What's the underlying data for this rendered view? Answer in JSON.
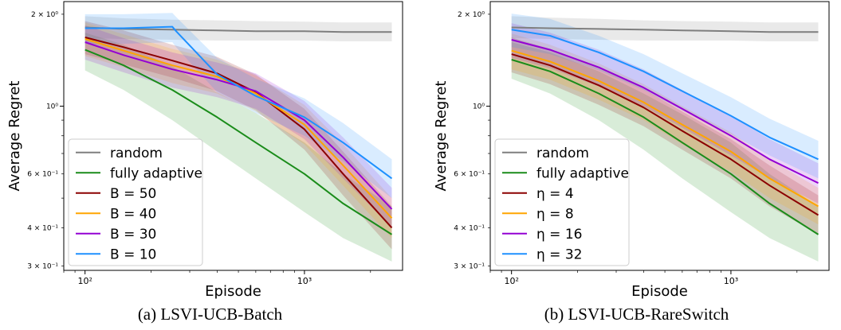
{
  "chart_data": [
    {
      "type": "line",
      "caption": "(a)  LSVI-UCB-Batch",
      "xlabel": "Episode",
      "ylabel": "Average Regret",
      "xscale": "log",
      "yscale": "log",
      "xlim": [
        80,
        2800
      ],
      "ylim": [
        0.29,
        2.2
      ],
      "x_ticks": [
        {
          "value": 100,
          "label": "10²"
        },
        {
          "value": 1000,
          "label": "10³"
        }
      ],
      "y_ticks": [
        {
          "value": 2,
          "label": "2 × 10⁰"
        },
        {
          "value": 1,
          "label": "10⁰"
        },
        {
          "value": 0.6,
          "label": "6 × 10⁻¹"
        },
        {
          "value": 0.4,
          "label": "4 × 10⁻¹"
        },
        {
          "value": 0.3,
          "label": "3 × 10⁻¹"
        }
      ],
      "legend_position": "lower-left",
      "grid": false,
      "series": [
        {
          "name": "random",
          "color": "#7f7f7f",
          "x": [
            100,
            150,
            250,
            400,
            600,
            1000,
            1500,
            2500
          ],
          "y": [
            1.81,
            1.79,
            1.78,
            1.77,
            1.76,
            1.76,
            1.75,
            1.75
          ],
          "lower": [
            1.67,
            1.66,
            1.65,
            1.64,
            1.64,
            1.64,
            1.63,
            1.63
          ],
          "upper": [
            1.97,
            1.94,
            1.92,
            1.91,
            1.9,
            1.89,
            1.88,
            1.88
          ]
        },
        {
          "name": "fully adaptive",
          "color": "#1a8c1a",
          "x": [
            100,
            150,
            250,
            400,
            600,
            1000,
            1500,
            2500
          ],
          "y": [
            1.53,
            1.36,
            1.13,
            0.92,
            0.76,
            0.6,
            0.48,
            0.38
          ],
          "lower": [
            1.31,
            1.13,
            0.9,
            0.71,
            0.58,
            0.45,
            0.37,
            0.31
          ],
          "upper": [
            1.74,
            1.59,
            1.35,
            1.11,
            0.95,
            0.76,
            0.6,
            0.47
          ]
        },
        {
          "name": "B = 50",
          "color": "#8b0000",
          "x": [
            100,
            150,
            250,
            400,
            600,
            1000,
            1500,
            2500
          ],
          "y": [
            1.68,
            1.56,
            1.41,
            1.28,
            1.11,
            0.84,
            0.6,
            0.4
          ],
          "lower": [
            1.48,
            1.37,
            1.24,
            1.12,
            0.97,
            0.72,
            0.51,
            0.34
          ],
          "upper": [
            1.9,
            1.77,
            1.59,
            1.45,
            1.27,
            0.98,
            0.71,
            0.47
          ]
        },
        {
          "name": "B = 40",
          "color": "#ffa500",
          "x": [
            100,
            150,
            250,
            400,
            600,
            1000,
            1500,
            2500
          ],
          "y": [
            1.66,
            1.52,
            1.36,
            1.25,
            1.1,
            0.87,
            0.64,
            0.43
          ],
          "lower": [
            1.46,
            1.34,
            1.19,
            1.1,
            0.96,
            0.75,
            0.55,
            0.37
          ],
          "upper": [
            1.88,
            1.72,
            1.54,
            1.42,
            1.26,
            1.01,
            0.75,
            0.5
          ]
        },
        {
          "name": "B = 30",
          "color": "#9400d3",
          "x": [
            100,
            150,
            250,
            400,
            600,
            1000,
            1500,
            2500
          ],
          "y": [
            1.62,
            1.47,
            1.32,
            1.22,
            1.12,
            0.9,
            0.68,
            0.46
          ],
          "lower": [
            1.42,
            1.29,
            1.15,
            1.07,
            0.98,
            0.78,
            0.58,
            0.4
          ],
          "upper": [
            1.84,
            1.67,
            1.5,
            1.39,
            1.28,
            1.04,
            0.79,
            0.54
          ]
        },
        {
          "name": "B = 10",
          "color": "#1e90ff",
          "x": [
            100,
            150,
            250,
            260,
            400,
            600,
            1000,
            1500,
            2500
          ],
          "y": [
            1.8,
            1.8,
            1.82,
            1.76,
            1.27,
            1.08,
            0.92,
            0.76,
            0.58
          ],
          "lower": [
            1.6,
            1.6,
            1.62,
            1.56,
            1.11,
            0.95,
            0.8,
            0.66,
            0.5
          ],
          "upper": [
            2.0,
            2.0,
            2.02,
            1.96,
            1.44,
            1.23,
            1.06,
            0.88,
            0.67
          ]
        }
      ]
    },
    {
      "type": "line",
      "caption": "(b)  LSVI-UCB-RareSwitch",
      "xlabel": "Episode",
      "ylabel": "Average Regret",
      "xscale": "log",
      "yscale": "log",
      "xlim": [
        80,
        2800
      ],
      "ylim": [
        0.29,
        2.2
      ],
      "x_ticks": [
        {
          "value": 100,
          "label": "10²"
        },
        {
          "value": 1000,
          "label": "10³"
        }
      ],
      "y_ticks": [
        {
          "value": 2,
          "label": "2 × 10⁰"
        },
        {
          "value": 1,
          "label": "10⁰"
        },
        {
          "value": 0.6,
          "label": "6 × 10⁻¹"
        },
        {
          "value": 0.4,
          "label": "4 × 10⁻¹"
        },
        {
          "value": 0.3,
          "label": "3 × 10⁻¹"
        }
      ],
      "legend_position": "lower-left",
      "grid": false,
      "series": [
        {
          "name": "random",
          "color": "#7f7f7f",
          "x": [
            100,
            150,
            250,
            400,
            600,
            1000,
            1500,
            2500
          ],
          "y": [
            1.81,
            1.8,
            1.79,
            1.78,
            1.77,
            1.76,
            1.75,
            1.75
          ],
          "lower": [
            1.67,
            1.66,
            1.65,
            1.64,
            1.64,
            1.64,
            1.63,
            1.63
          ],
          "upper": [
            1.97,
            1.95,
            1.93,
            1.91,
            1.9,
            1.89,
            1.88,
            1.88
          ]
        },
        {
          "name": "fully adaptive",
          "color": "#1a8c1a",
          "x": [
            100,
            150,
            250,
            400,
            600,
            1000,
            1500,
            2500
          ],
          "y": [
            1.42,
            1.3,
            1.1,
            0.92,
            0.76,
            0.6,
            0.48,
            0.38
          ],
          "lower": [
            1.23,
            1.1,
            0.9,
            0.72,
            0.58,
            0.45,
            0.37,
            0.31
          ],
          "upper": [
            1.62,
            1.5,
            1.3,
            1.1,
            0.94,
            0.76,
            0.6,
            0.47
          ]
        },
        {
          "name": "η = 4",
          "color": "#8b0000",
          "x": [
            100,
            150,
            250,
            400,
            600,
            1000,
            1500,
            2500
          ],
          "y": [
            1.48,
            1.36,
            1.17,
            0.99,
            0.83,
            0.67,
            0.55,
            0.44
          ],
          "lower": [
            1.29,
            1.18,
            1.01,
            0.86,
            0.72,
            0.58,
            0.47,
            0.38
          ],
          "upper": [
            1.68,
            1.54,
            1.34,
            1.14,
            0.96,
            0.78,
            0.64,
            0.51
          ]
        },
        {
          "name": "η = 8",
          "color": "#ffa500",
          "x": [
            100,
            150,
            250,
            400,
            600,
            1000,
            1500,
            2500
          ],
          "y": [
            1.52,
            1.4,
            1.21,
            1.03,
            0.87,
            0.71,
            0.58,
            0.47
          ],
          "lower": [
            1.32,
            1.22,
            1.05,
            0.9,
            0.75,
            0.61,
            0.5,
            0.41
          ],
          "upper": [
            1.73,
            1.59,
            1.38,
            1.18,
            1.0,
            0.82,
            0.67,
            0.54
          ]
        },
        {
          "name": "η = 16",
          "color": "#9400d3",
          "x": [
            100,
            150,
            250,
            400,
            600,
            1000,
            1500,
            2500
          ],
          "y": [
            1.65,
            1.53,
            1.34,
            1.15,
            0.98,
            0.8,
            0.67,
            0.56
          ],
          "lower": [
            1.44,
            1.33,
            1.16,
            1.0,
            0.85,
            0.69,
            0.58,
            0.48
          ],
          "upper": [
            1.87,
            1.74,
            1.53,
            1.32,
            1.13,
            0.93,
            0.78,
            0.65
          ]
        },
        {
          "name": "η = 32",
          "color": "#1e90ff",
          "x": [
            100,
            150,
            250,
            400,
            600,
            1000,
            1500,
            2500
          ],
          "y": [
            1.78,
            1.7,
            1.5,
            1.3,
            1.12,
            0.93,
            0.79,
            0.67
          ],
          "lower": [
            1.56,
            1.48,
            1.31,
            1.13,
            0.97,
            0.81,
            0.69,
            0.58
          ],
          "upper": [
            2.01,
            1.93,
            1.7,
            1.48,
            1.28,
            1.07,
            0.91,
            0.77
          ]
        }
      ]
    }
  ]
}
